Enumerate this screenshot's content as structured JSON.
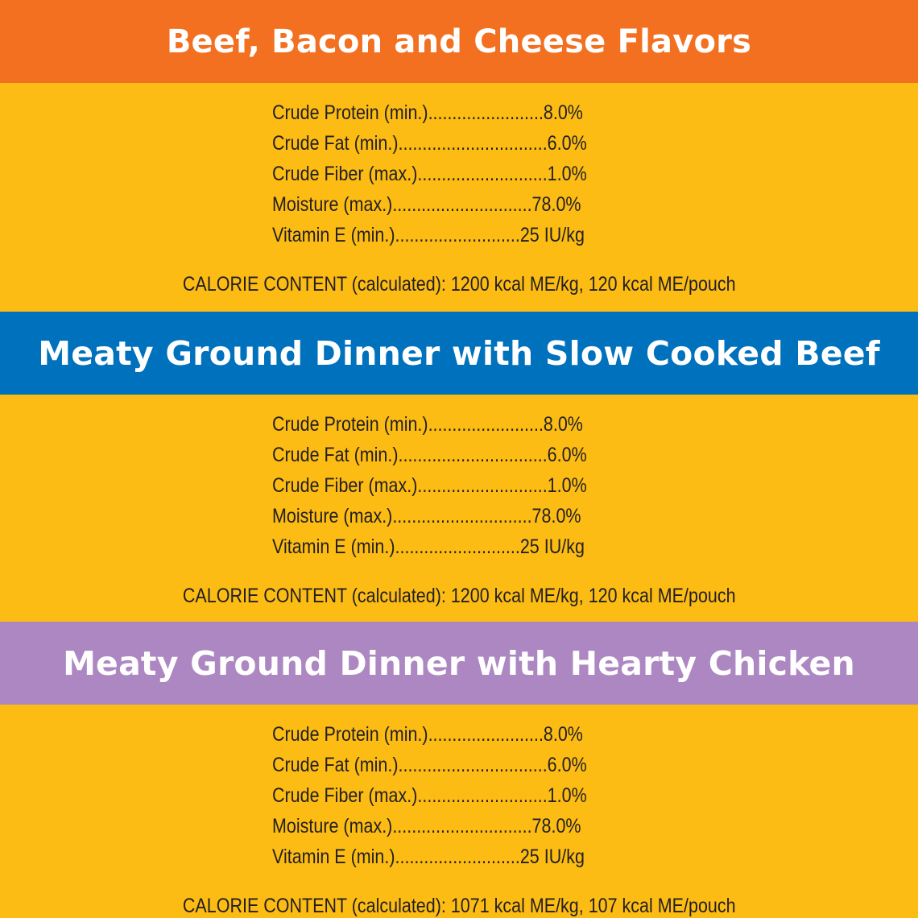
{
  "sections": [
    {
      "title": "Beef, Bacon and Cheese Flavors",
      "band_color": "#f37021",
      "rows": [
        "Crude Protein (min.)........................8.0%",
        "Crude Fat (min.)...............................6.0%",
        "Crude Fiber (max.)...........................1.0%",
        "Moisture (max.).............................78.0%",
        "Vitamin E (min.)..........................25 IU/kg"
      ],
      "calorie": "CALORIE CONTENT (calculated): 1200 kcal ME/kg, 120 kcal ME/pouch"
    },
    {
      "title": "Meaty Ground Dinner with Slow Cooked Beef",
      "band_color": "#0071bc",
      "rows": [
        "Crude Protein (min.)........................8.0%",
        "Crude Fat (min.)...............................6.0%",
        "Crude Fiber (max.)...........................1.0%",
        "Moisture (max.).............................78.0%",
        "Vitamin E (min.)..........................25 IU/kg"
      ],
      "calorie": "CALORIE CONTENT (calculated): 1200 kcal ME/kg, 120 kcal ME/pouch"
    },
    {
      "title": "Meaty Ground Dinner with Hearty Chicken",
      "band_color": "#ad87c2",
      "rows": [
        "Crude Protein (min.)........................8.0%",
        "Crude Fat (min.)...............................6.0%",
        "Crude Fiber (max.)...........................1.0%",
        "Moisture (max.).............................78.0%",
        "Vitamin E (min.)..........................25 IU/kg"
      ],
      "calorie": "CALORIE CONTENT (calculated): 1071 kcal ME/kg, 107 kcal ME/pouch"
    }
  ],
  "background_color": "#fcbc14"
}
